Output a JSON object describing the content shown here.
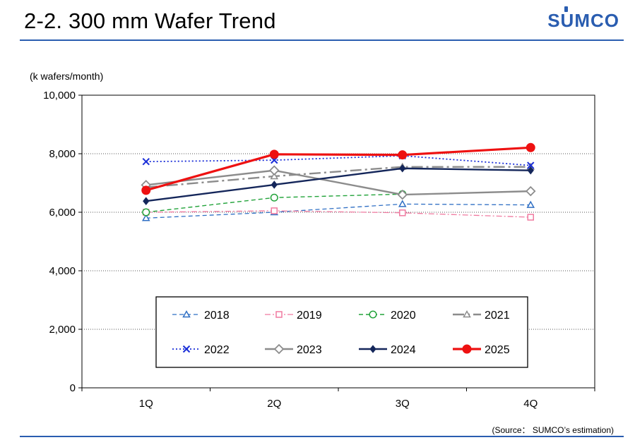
{
  "page": {
    "title": "2-2. 300 mm Wafer Trend",
    "logo": "SUMCO",
    "source": "(Source： SUMCO’s estimation)"
  },
  "chart_data": {
    "type": "line",
    "ylabel": "(k wafers/month)",
    "categories": [
      "1Q",
      "2Q",
      "3Q",
      "4Q"
    ],
    "ylim": [
      0,
      10000
    ],
    "yticks": [
      "0",
      "2,000",
      "4,000",
      "6,000",
      "8,000",
      "10,000"
    ],
    "grid": true,
    "legend": "bottom-center-inside",
    "series": [
      {
        "name": "2018",
        "values": [
          5800,
          6000,
          6280,
          6250
        ],
        "color": "#2f6fc4",
        "dash": "6,4",
        "marker": "triangle-open",
        "width": 1.3
      },
      {
        "name": "2019",
        "values": [
          6000,
          6050,
          5980,
          5830
        ],
        "color": "#f07aa0",
        "dash": "8,3,2,3",
        "marker": "square-open",
        "width": 1.3
      },
      {
        "name": "2020",
        "values": [
          6000,
          6500,
          6620,
          null
        ],
        "color": "#22a33a",
        "dash": "6,4",
        "marker": "circle-open",
        "width": 1.4
      },
      {
        "name": "2021",
        "values": [
          6850,
          7230,
          7550,
          7550
        ],
        "color": "#8c8c8c",
        "dash": "16,5,3,5",
        "marker": "triangle-open",
        "width": 2.4
      },
      {
        "name": "2022",
        "values": [
          7730,
          7780,
          7930,
          7600
        ],
        "color": "#1a2ed8",
        "dash": "2,3",
        "marker": "x",
        "width": 1.8
      },
      {
        "name": "2023",
        "values": [
          6930,
          7430,
          6600,
          6720
        ],
        "color": "#8c8c8c",
        "dash": "",
        "marker": "diamond-open",
        "width": 2.4
      },
      {
        "name": "2024",
        "values": [
          6380,
          6940,
          7500,
          7430
        ],
        "color": "#14265a",
        "dash": "",
        "marker": "diamond-filled",
        "width": 2.4
      },
      {
        "name": "2025",
        "values": [
          6750,
          7980,
          7960,
          8210
        ],
        "color": "#ee1111",
        "dash": "",
        "marker": "circle-filled",
        "width": 3.2
      }
    ]
  }
}
